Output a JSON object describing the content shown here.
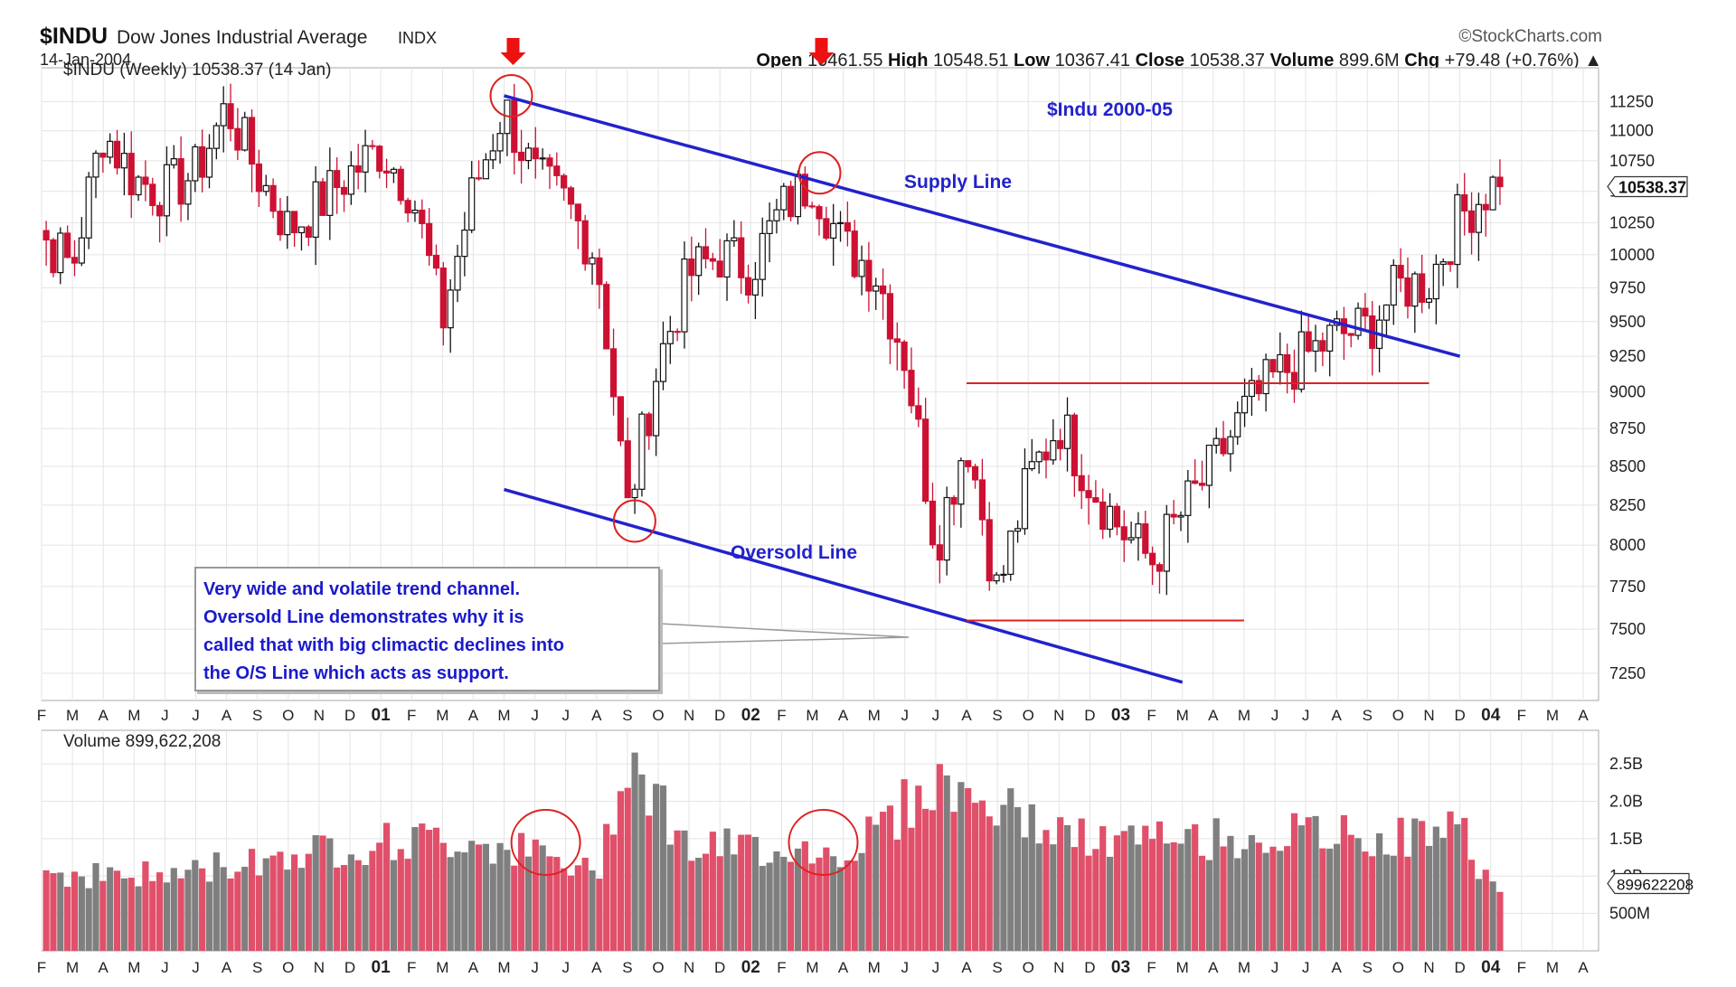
{
  "header": {
    "symbol": "$INDU",
    "name": "Dow Jones Industrial Average",
    "exchange": "INDX",
    "date": "14-Jan-2004",
    "source": "©StockCharts.com",
    "open_label": "Open",
    "open": "10461.55",
    "high_label": "High",
    "high": "10548.51",
    "low_label": "Low",
    "low": "10367.41",
    "close_label": "Close",
    "close": "10538.37",
    "volume_label": "Volume",
    "volume": "899.6M",
    "chg_label": "Chg",
    "chg": "+79.48 (+0.76%)",
    "chg_arrow": "▲"
  },
  "chart_data": [
    {
      "type": "candlestick",
      "title": "$INDU (Weekly) 10538.37 (14 Jan)",
      "annotation_title": "$Indu 2000-05",
      "ylim": [
        7100,
        11450
      ],
      "y_scale": "log",
      "yticks": [
        7250,
        7500,
        7750,
        8000,
        8250,
        8500,
        8750,
        9000,
        9250,
        9500,
        9750,
        10000,
        10250,
        10500,
        10750,
        11000,
        11250
      ],
      "last_value_label": "10538.37",
      "x_month_labels": [
        "F",
        "M",
        "A",
        "M",
        "J",
        "J",
        "A",
        "S",
        "O",
        "N",
        "D",
        "01",
        "F",
        "M",
        "A",
        "M",
        "J",
        "J",
        "A",
        "S",
        "O",
        "N",
        "D",
        "02",
        "F",
        "M",
        "A",
        "M",
        "J",
        "J",
        "A",
        "S",
        "O",
        "N",
        "D",
        "03",
        "F",
        "M",
        "A",
        "M",
        "J",
        "J",
        "A",
        "S",
        "O",
        "N",
        "D",
        "04",
        "F",
        "M",
        "A"
      ],
      "x_range": [
        "2000-02",
        "2004-04"
      ],
      "up_color": "#111111",
      "down_color": "#cc1133",
      "anchor_closes": [
        {
          "date": "2000-01",
          "close": 10950
        },
        {
          "date": "2000-02",
          "close": 10150
        },
        {
          "date": "2000-03",
          "close": 9900
        },
        {
          "date": "2000-04",
          "close": 11000
        },
        {
          "date": "2000-05",
          "close": 10600
        },
        {
          "date": "2000-06",
          "close": 10500
        },
        {
          "date": "2000-07",
          "close": 10650
        },
        {
          "date": "2000-08",
          "close": 11200
        },
        {
          "date": "2000-09",
          "close": 10650
        },
        {
          "date": "2000-10",
          "close": 10200
        },
        {
          "date": "2000-11",
          "close": 10400
        },
        {
          "date": "2000-12",
          "close": 10650
        },
        {
          "date": "2001-01",
          "close": 10850
        },
        {
          "date": "2001-02",
          "close": 10500
        },
        {
          "date": "2001-03",
          "close": 9500
        },
        {
          "date": "2001-04",
          "close": 10500
        },
        {
          "date": "2001-05",
          "close": 11200
        },
        {
          "date": "2001-06",
          "close": 10600
        },
        {
          "date": "2001-07",
          "close": 10400
        },
        {
          "date": "2001-08",
          "close": 10000
        },
        {
          "date": "2001-09",
          "close": 8200
        },
        {
          "date": "2001-10",
          "close": 9200
        },
        {
          "date": "2001-11",
          "close": 9850
        },
        {
          "date": "2001-12",
          "close": 10000
        },
        {
          "date": "2002-01",
          "close": 9900
        },
        {
          "date": "2002-02",
          "close": 10350
        },
        {
          "date": "2002-03",
          "close": 10600
        },
        {
          "date": "2002-04",
          "close": 10050
        },
        {
          "date": "2002-05",
          "close": 9900
        },
        {
          "date": "2002-06",
          "close": 9250
        },
        {
          "date": "2002-07",
          "close": 8000
        },
        {
          "date": "2002-08",
          "close": 8700
        },
        {
          "date": "2002-09",
          "close": 7700
        },
        {
          "date": "2002-10",
          "close": 8400
        },
        {
          "date": "2002-11",
          "close": 8800
        },
        {
          "date": "2002-12",
          "close": 8400
        },
        {
          "date": "2003-01",
          "close": 8100
        },
        {
          "date": "2003-02",
          "close": 7900
        },
        {
          "date": "2003-03",
          "close": 8200
        },
        {
          "date": "2003-04",
          "close": 8500
        },
        {
          "date": "2003-05",
          "close": 8850
        },
        {
          "date": "2003-06",
          "close": 9100
        },
        {
          "date": "2003-07",
          "close": 9250
        },
        {
          "date": "2003-08",
          "close": 9400
        },
        {
          "date": "2003-09",
          "close": 9450
        },
        {
          "date": "2003-10",
          "close": 9750
        },
        {
          "date": "2003-11",
          "close": 9800
        },
        {
          "date": "2003-12",
          "close": 10300
        },
        {
          "date": "2004-01",
          "close": 10540
        }
      ],
      "annotations": [
        {
          "type": "trendline",
          "label": "Supply Line",
          "color": "#2222cc",
          "from": {
            "date": "2001-05",
            "value": 11300
          },
          "to": {
            "date": "2003-12",
            "value": 9250
          }
        },
        {
          "type": "trendline",
          "label": "Oversold Line",
          "color": "#2222cc",
          "from": {
            "date": "2001-05",
            "value": 8350
          },
          "to": {
            "date": "2003-03",
            "value": 7200
          }
        },
        {
          "type": "hline",
          "color": "#dd2222",
          "value": 9060,
          "from": "2002-08",
          "to": "2003-11"
        },
        {
          "type": "hline",
          "color": "#dd2222",
          "value": 7550,
          "from": "2002-08",
          "to": "2003-05"
        },
        {
          "type": "circle",
          "color": "#dd2222",
          "date": "2001-05",
          "value": 11300
        },
        {
          "type": "circle",
          "color": "#dd2222",
          "date": "2002-03",
          "value": 10650
        },
        {
          "type": "circle",
          "color": "#dd2222",
          "date": "2001-09",
          "value": 8150
        },
        {
          "type": "arrow",
          "color": "#ee1111",
          "date": "2001-05"
        },
        {
          "type": "arrow",
          "color": "#ee1111",
          "date": "2002-03"
        }
      ]
    },
    {
      "type": "bar",
      "title": "Volume 899,622,208",
      "y_unit": "shares",
      "ylim": [
        0,
        2900000000
      ],
      "yticks": [
        500000000,
        1000000000,
        1500000000,
        2000000000,
        2500000000
      ],
      "ytick_labels": [
        "500M",
        "1.0B",
        "1.5B",
        "2.0B",
        "2.5B"
      ],
      "last_value_label": "899622208",
      "up_color": "#7f7f7f",
      "down_color": "#e0506a",
      "anchor_volumes": [
        {
          "date": "2000-02",
          "value": 1050000000
        },
        {
          "date": "2000-06",
          "value": 1000000000
        },
        {
          "date": "2000-10",
          "value": 1300000000
        },
        {
          "date": "2001-01",
          "value": 1450000000
        },
        {
          "date": "2001-04",
          "value": 1500000000
        },
        {
          "date": "2001-06",
          "value": 1300000000
        },
        {
          "date": "2001-08",
          "value": 1000000000
        },
        {
          "date": "2001-09",
          "value": 2700000000
        },
        {
          "date": "2001-11",
          "value": 1350000000
        },
        {
          "date": "2002-02",
          "value": 1400000000
        },
        {
          "date": "2002-04",
          "value": 1300000000
        },
        {
          "date": "2002-07",
          "value": 2250000000
        },
        {
          "date": "2002-10",
          "value": 1750000000
        },
        {
          "date": "2002-12",
          "value": 1450000000
        },
        {
          "date": "2003-04",
          "value": 1500000000
        },
        {
          "date": "2003-07",
          "value": 1550000000
        },
        {
          "date": "2003-10",
          "value": 1500000000
        },
        {
          "date": "2003-12",
          "value": 1650000000
        },
        {
          "date": "2004-01",
          "value": 900000000
        }
      ],
      "annotations": [
        {
          "type": "circle",
          "color": "#dd2222",
          "date": "2001-06"
        },
        {
          "type": "circle",
          "color": "#dd2222",
          "date": "2002-03"
        }
      ]
    }
  ],
  "note": {
    "lines": [
      "Very wide and volatile trend channel.",
      "Oversold Line demonstrates why it is",
      "called that with big climactic declines into",
      "the O/S Line which acts as support."
    ]
  }
}
